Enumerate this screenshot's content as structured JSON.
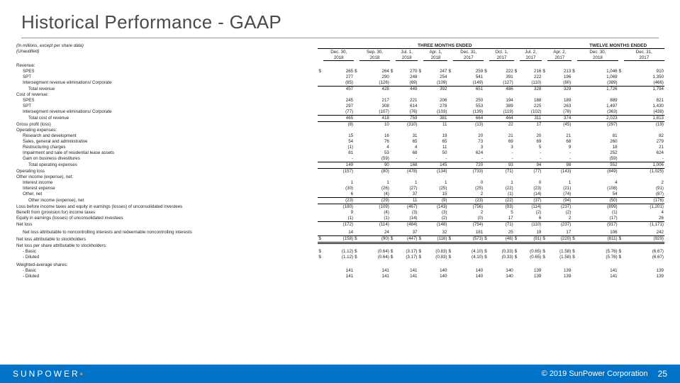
{
  "title": "Historical Performance - GAAP",
  "footer": {
    "brand": "SUNPOWER",
    "copyright": "© 2019 SunPower Corporation",
    "page": "25"
  },
  "note1": "(In millions, except per share data)",
  "note2": "(Unaudited)",
  "period_headers": {
    "three": "THREE MONTHS ENDED",
    "twelve": "TWELVE MONTHS ENDED"
  },
  "columns": [
    {
      "l1": "Dec. 30,",
      "l2": "2018"
    },
    {
      "l1": "Sep. 30,",
      "l2": "2018"
    },
    {
      "l1": "Jul. 1,",
      "l2": "2018"
    },
    {
      "l1": "Apr. 1,",
      "l2": "2018"
    },
    {
      "l1": "Dec. 31,",
      "l2": "2017"
    },
    {
      "l1": "Oct. 1,",
      "l2": "2017"
    },
    {
      "l1": "Jul. 2,",
      "l2": "2017"
    },
    {
      "l1": "Apr. 2,",
      "l2": "2017"
    },
    {
      "l1": "Dec. 30,",
      "l2": "2018"
    },
    {
      "l1": "Dec. 31,",
      "l2": "2017"
    }
  ],
  "rows": [
    {
      "type": "blank"
    },
    {
      "label": "Revenue:",
      "indent": 0
    },
    {
      "label": "SPES",
      "indent": 1,
      "cur": true,
      "vals": [
        "265",
        "264",
        "270",
        "247",
        "259",
        "222",
        "216",
        "213",
        "1,046",
        "910"
      ]
    },
    {
      "label": "SPT",
      "indent": 1,
      "vals": [
        "277",
        "290",
        "248",
        "254",
        "541",
        "391",
        "222",
        "196",
        "1,069",
        "1,350"
      ]
    },
    {
      "label": "Intersegment revenue eliminations/ Corporate",
      "indent": 1,
      "bline": true,
      "vals": [
        "(85)",
        "(126)",
        "(69)",
        "(109)",
        "(149)",
        "(127)",
        "(110)",
        "(80)",
        "(389)",
        "(466)"
      ]
    },
    {
      "label": "Total revenue",
      "indent": 2,
      "vals": [
        "457",
        "428",
        "449",
        "392",
        "651",
        "486",
        "328",
        "329",
        "1,726",
        "1,794"
      ]
    },
    {
      "label": "Cost of revenue:",
      "indent": 0
    },
    {
      "label": "SPES",
      "indent": 1,
      "vals": [
        "245",
        "217",
        "221",
        "206",
        "250",
        "194",
        "188",
        "189",
        "889",
        "821"
      ]
    },
    {
      "label": "SPT",
      "indent": 1,
      "vals": [
        "297",
        "308",
        "614",
        "278",
        "553",
        "389",
        "225",
        "263",
        "1,497",
        "1,430"
      ]
    },
    {
      "label": "Intersegment revenue eliminations/ Corporate",
      "indent": 1,
      "bline": true,
      "vals": [
        "(77)",
        "(107)",
        "(76)",
        "(103)",
        "(139)",
        "(119)",
        "(102)",
        "(78)",
        "(363)",
        "(438)"
      ]
    },
    {
      "label": "Total cost of revenue",
      "indent": 2,
      "bline": true,
      "vals": [
        "465",
        "418",
        "759",
        "381",
        "664",
        "464",
        "311",
        "374",
        "2,023",
        "1,813"
      ]
    },
    {
      "label": "Gross profit (loss)",
      "indent": 0,
      "vals": [
        "(8)",
        "10",
        "(310)",
        "11",
        "(13)",
        "22",
        "17",
        "(45)",
        "(297)",
        "(19)"
      ]
    },
    {
      "label": "Operating expenses:",
      "indent": 0
    },
    {
      "label": "Research and development",
      "indent": 1,
      "vals": [
        "15",
        "16",
        "31",
        "19",
        "20",
        "21",
        "20",
        "21",
        "81",
        "82"
      ]
    },
    {
      "label": "Sales, general and administrative",
      "indent": 1,
      "vals": [
        "54",
        "76",
        "65",
        "65",
        "73",
        "69",
        "69",
        "68",
        "260",
        "279"
      ]
    },
    {
      "label": "Restructuring charges",
      "indent": 1,
      "vals": [
        "(1)",
        "4",
        "4",
        "11",
        "3",
        "3",
        "5",
        "9",
        "18",
        "21"
      ]
    },
    {
      "label": "Impairment and sale of residential lease assets",
      "indent": 1,
      "vals": [
        "81",
        "53",
        "68",
        "50",
        "624",
        "-",
        "-",
        "-",
        "252",
        "624"
      ]
    },
    {
      "label": "Gain on business divestitures",
      "indent": 1,
      "bline": true,
      "vals": [
        "-",
        "(59)",
        "-",
        "-",
        "-",
        "-",
        "-",
        "-",
        "(59)",
        "-"
      ]
    },
    {
      "label": "Total operating expenses",
      "indent": 2,
      "bline": true,
      "vals": [
        "149",
        "90",
        "168",
        "145",
        "720",
        "93",
        "94",
        "98",
        "552",
        "1,006"
      ]
    },
    {
      "label": "Operating loss",
      "indent": 0,
      "vals": [
        "(157)",
        "(80)",
        "(478)",
        "(134)",
        "(733)",
        "(71)",
        "(77)",
        "(143)",
        "(849)",
        "(1,025)"
      ]
    },
    {
      "label": "Other income (expense), net:",
      "indent": 0
    },
    {
      "label": "Interest income",
      "indent": 1,
      "vals": [
        "1",
        "1",
        "1",
        "1",
        "0",
        "1",
        "0",
        "1",
        "4",
        "2"
      ]
    },
    {
      "label": "Interest expense",
      "indent": 1,
      "vals": [
        "(30)",
        "(26)",
        "(27)",
        "(25)",
        "(25)",
        "(22)",
        "(23)",
        "(21)",
        "(108)",
        "(91)"
      ]
    },
    {
      "label": "Other, net",
      "indent": 1,
      "bline": true,
      "vals": [
        "6",
        "(4)",
        "37",
        "15",
        "2",
        "(1)",
        "(14)",
        "(74)",
        "54",
        "(87)"
      ]
    },
    {
      "label": "Other income (expense), net",
      "indent": 2,
      "bline": true,
      "vals": [
        "(23)",
        "(29)",
        "11",
        "(9)",
        "(23)",
        "(22)",
        "(37)",
        "(94)",
        "(50)",
        "(176)"
      ]
    },
    {
      "label": "Loss before income taxes and equity in earnings (losses) of unconsolidated investees",
      "indent": 0,
      "vals": [
        "(180)",
        "(109)",
        "(467)",
        "(143)",
        "(756)",
        "(93)",
        "(114)",
        "(237)",
        "(899)",
        "(1,201)"
      ]
    },
    {
      "label": "Benefit from (provision for) income taxes",
      "indent": 0,
      "vals": [
        "9",
        "(4)",
        "(3)",
        "(3)",
        "2",
        "5",
        "(2)",
        "(2)",
        "(1)",
        "4"
      ]
    },
    {
      "label": "Equity in earnings (losses) of unconsolidated investees",
      "indent": 0,
      "bline": true,
      "vals": [
        "(1)",
        "(1)",
        "(14)",
        "(2)",
        "(0)",
        "17",
        "6",
        "2",
        "(17)",
        "26"
      ]
    },
    {
      "label": "Net loss",
      "indent": 0,
      "vals": [
        "(172)",
        "(114)",
        "(484)",
        "(148)",
        "(754)",
        "(71)",
        "(110)",
        "(237)",
        "(917)",
        "(1,171)"
      ]
    },
    {
      "type": "blank"
    },
    {
      "label": "Net loss attributable to noncontrolling interests and redeemable noncontrolling interests",
      "indent": 1,
      "bline": true,
      "vals": [
        "14",
        "24",
        "37",
        "32",
        "181",
        "25",
        "19",
        "17",
        "106",
        "242"
      ]
    },
    {
      "label": "Net loss attributable to stockholders",
      "indent": 0,
      "cur": true,
      "dline": true,
      "vals": [
        "(158)",
        "(90)",
        "(447)",
        "(116)",
        "(573)",
        "(46)",
        "(91)",
        "(220)",
        "(811)",
        "(929)"
      ]
    },
    {
      "label": "Net loss per share attributable to stockholders:",
      "indent": 0
    },
    {
      "label": "- Basic",
      "indent": 1,
      "cur": true,
      "vals": [
        "(1.12)",
        "(0.64)",
        "(3.17)",
        "(0.83)",
        "(4.10)",
        "(0.33)",
        "(0.65)",
        "(1.58)",
        "(5.76)",
        "(6.67)"
      ]
    },
    {
      "label": "- Diluted",
      "indent": 1,
      "cur": true,
      "vals": [
        "(1.12)",
        "(0.64)",
        "(3.17)",
        "(0.83)",
        "(4.10)",
        "(0.33)",
        "(0.65)",
        "(1.58)",
        "(5.76)",
        "(6.67)"
      ]
    },
    {
      "type": "blank"
    },
    {
      "label": "Weighted-average shares:",
      "indent": 0
    },
    {
      "label": "- Basic",
      "indent": 1,
      "vals": [
        "141",
        "141",
        "141",
        "140",
        "140",
        "140",
        "139",
        "139",
        "141",
        "139"
      ]
    },
    {
      "label": "- Diluted",
      "indent": 1,
      "vals": [
        "141",
        "141",
        "141",
        "140",
        "140",
        "140",
        "139",
        "139",
        "141",
        "139"
      ]
    }
  ]
}
